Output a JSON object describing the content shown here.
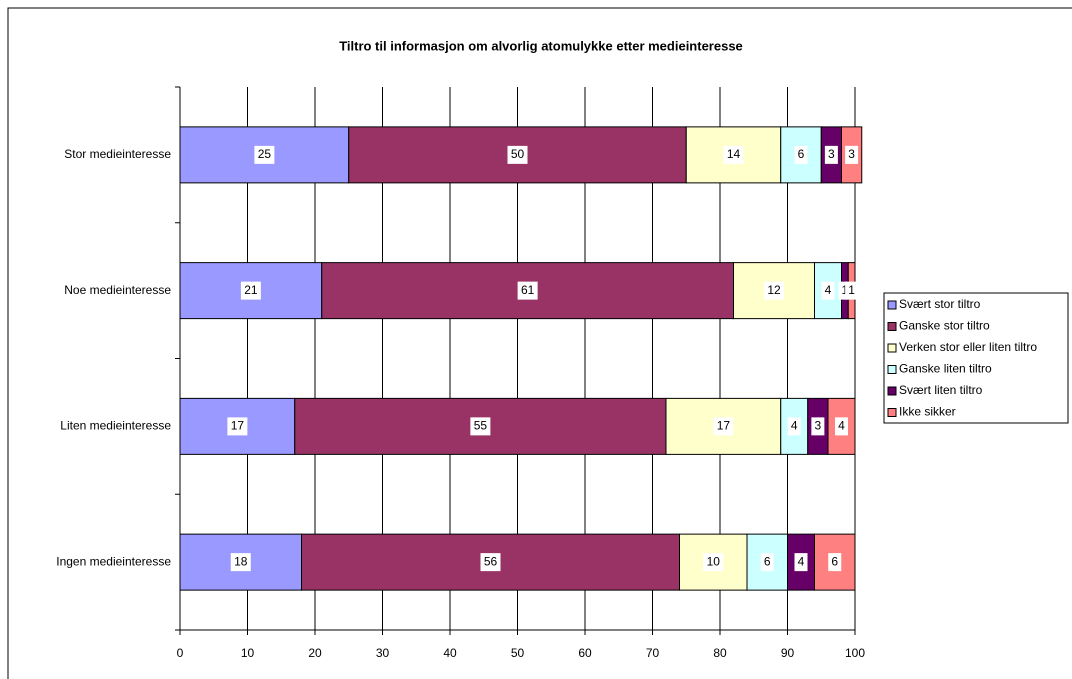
{
  "chart_data": {
    "type": "stacked-bar-horizontal",
    "title": "Tiltro til informasjon om alvorlig atomulykke etter medieinteresse",
    "categories": [
      "Stor medieinteresse",
      "Noe medieinteresse",
      "Liten medieinteresse",
      "Ingen medieinteresse"
    ],
    "series": [
      {
        "name": "Svært stor tiltro",
        "color": "#9999FF",
        "values": [
          25,
          21,
          17,
          18
        ]
      },
      {
        "name": "Ganske stor tiltro",
        "color": "#993366",
        "values": [
          50,
          61,
          55,
          56
        ]
      },
      {
        "name": "Verken stor eller liten tiltro",
        "color": "#FFFFCC",
        "values": [
          14,
          12,
          17,
          10
        ]
      },
      {
        "name": "Ganske liten tiltro",
        "color": "#CCFFFF",
        "values": [
          6,
          4,
          4,
          6
        ]
      },
      {
        "name": "Svært liten tiltro",
        "color": "#660066",
        "values": [
          3,
          1,
          3,
          4
        ]
      },
      {
        "name": "Ikke sikker",
        "color": "#FF8080",
        "values": [
          3,
          1,
          4,
          6
        ]
      }
    ],
    "xlim": [
      0,
      100
    ],
    "xticks": [
      0,
      10,
      20,
      30,
      40,
      50,
      60,
      70,
      80,
      90,
      100
    ],
    "grid": true,
    "legend": "right"
  }
}
